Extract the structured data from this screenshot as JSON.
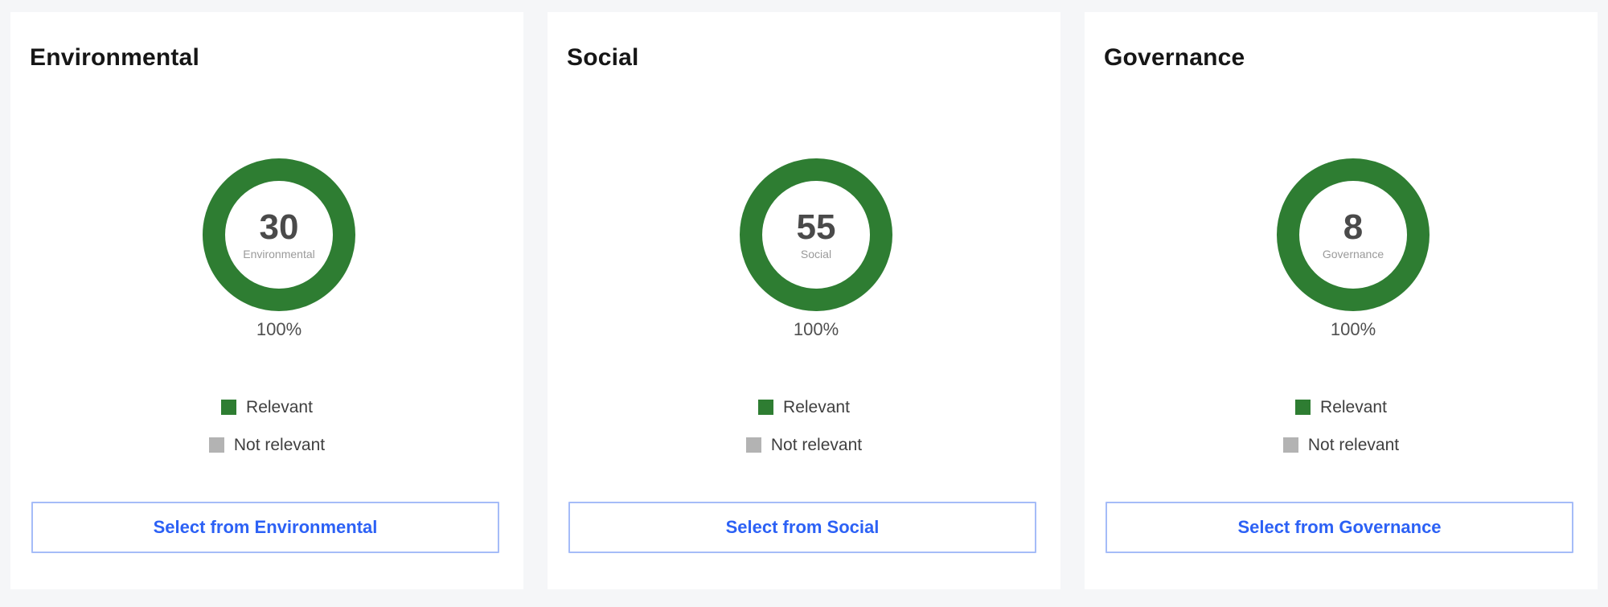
{
  "page": {
    "background_color": "#f5f6f8",
    "card_background": "#ffffff"
  },
  "colors": {
    "relevant_green": "#2e7d32",
    "not_relevant_gray": "#b3b3b3",
    "title_text": "#161616",
    "button_text_blue": "#2c61f5",
    "button_border_blue": "#a5bcf8",
    "value_text": "#4a4a4a",
    "caption_text": "#4f4f4f"
  },
  "chart_data": [
    {
      "type": "pie",
      "style": "donut",
      "title": "Environmental",
      "slices": [
        {
          "label": "Relevant",
          "value_percent": 100,
          "color": "#2e7d32"
        },
        {
          "label": "Not relevant",
          "value_percent": 0,
          "color": "#b3b3b3"
        }
      ],
      "center_value": 30,
      "center_label": "Environmental",
      "caption": "100%",
      "legend_position": "below"
    },
    {
      "type": "pie",
      "style": "donut",
      "title": "Social",
      "slices": [
        {
          "label": "Relevant",
          "value_percent": 100,
          "color": "#2e7d32"
        },
        {
          "label": "Not relevant",
          "value_percent": 0,
          "color": "#b3b3b3"
        }
      ],
      "center_value": 55,
      "center_label": "Social",
      "caption": "100%",
      "legend_position": "below"
    },
    {
      "type": "pie",
      "style": "donut",
      "title": "Governance",
      "slices": [
        {
          "label": "Relevant",
          "value_percent": 100,
          "color": "#2e7d32"
        },
        {
          "label": "Not relevant",
          "value_percent": 0,
          "color": "#b3b3b3"
        }
      ],
      "center_value": 8,
      "center_label": "Governance",
      "caption": "100%",
      "legend_position": "below"
    }
  ],
  "cards": [
    {
      "title": "Environmental",
      "donut": {
        "value": "30",
        "label": "Environmental",
        "ring_color": "#2e7d32",
        "percent_caption": "100%"
      },
      "legend": [
        {
          "label": "Relevant",
          "color": "#2e7d32"
        },
        {
          "label": "Not relevant",
          "color": "#b3b3b3"
        }
      ],
      "button_label": "Select from Environmental"
    },
    {
      "title": "Social",
      "donut": {
        "value": "55",
        "label": "Social",
        "ring_color": "#2e7d32",
        "percent_caption": "100%"
      },
      "legend": [
        {
          "label": "Relevant",
          "color": "#2e7d32"
        },
        {
          "label": "Not relevant",
          "color": "#b3b3b3"
        }
      ],
      "button_label": "Select from Social"
    },
    {
      "title": "Governance",
      "donut": {
        "value": "8",
        "label": "Governance",
        "ring_color": "#2e7d32",
        "percent_caption": "100%"
      },
      "legend": [
        {
          "label": "Relevant",
          "color": "#2e7d32"
        },
        {
          "label": "Not relevant",
          "color": "#b3b3b3"
        }
      ],
      "button_label": "Select from Governance"
    }
  ]
}
